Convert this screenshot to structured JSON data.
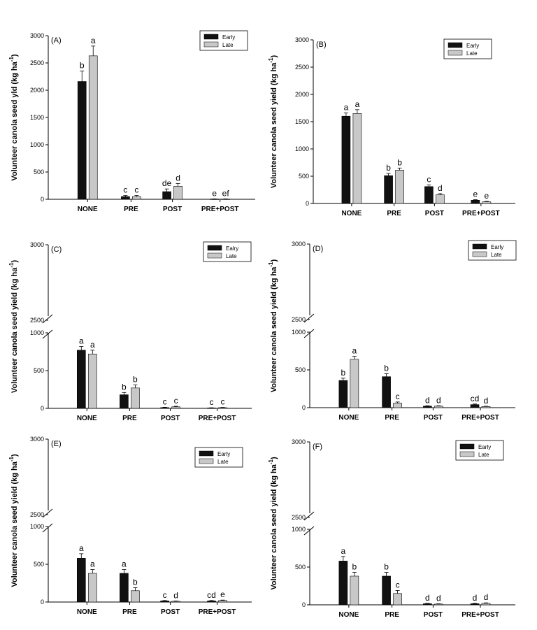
{
  "chart_data": [
    {
      "type": "bar",
      "panel_label": "(A)",
      "ylabel": "Volunteer canola seed yld (kg ha",
      "ylabel_exp": "-1",
      "ylabel_close": ")",
      "categories": [
        "NONE",
        "PRE",
        "POST",
        "PRE+POST"
      ],
      "broken_axis": false,
      "ylim": [
        0,
        3000
      ],
      "yticks": [
        0,
        500,
        1000,
        1500,
        2000,
        2500,
        3000
      ],
      "legend_position": "top-right",
      "series": [
        {
          "name": "Early",
          "color": "#111111",
          "values": [
            2160,
            50,
            140,
            5
          ],
          "errors": [
            190,
            20,
            50,
            3
          ],
          "letters": [
            "b",
            "c",
            "de",
            "e"
          ]
        },
        {
          "name": "Late",
          "color": "#c8c8c8",
          "values": [
            2630,
            50,
            240,
            5
          ],
          "errors": [
            180,
            20,
            50,
            3
          ],
          "letters": [
            "a",
            "c",
            "d",
            "ef"
          ]
        }
      ]
    },
    {
      "type": "bar",
      "panel_label": "(B)",
      "ylabel": "Volunteer canola seed yield (kg ha",
      "ylabel_exp": "-1",
      "ylabel_close": ")",
      "categories": [
        "NONE",
        "PRE",
        "POST",
        "PRE+POST"
      ],
      "broken_axis": false,
      "ylim": [
        0,
        3000
      ],
      "yticks": [
        0,
        500,
        1000,
        1500,
        2000,
        2500,
        3000
      ],
      "legend_position": "top-right",
      "series": [
        {
          "name": "Early",
          "color": "#111111",
          "values": [
            1600,
            510,
            310,
            60
          ],
          "errors": [
            60,
            40,
            30,
            10
          ],
          "letters": [
            "a",
            "b",
            "c",
            "e"
          ]
        },
        {
          "name": "Late",
          "color": "#c8c8c8",
          "values": [
            1650,
            610,
            160,
            30
          ],
          "errors": [
            70,
            40,
            20,
            8
          ],
          "letters": [
            "a",
            "b",
            "d",
            "e"
          ]
        }
      ]
    },
    {
      "type": "bar",
      "panel_label": "(C)",
      "ylabel": "Volunteer canola seed yield (kg ha",
      "ylabel_exp": "-1",
      "ylabel_close": ")",
      "categories": [
        "NONE",
        "PRE",
        "POST",
        "PRE+POST"
      ],
      "broken_axis": true,
      "ylim": [
        0,
        1000
      ],
      "yticks": [
        0,
        500,
        1000
      ],
      "upper_yticks": [
        2500,
        3000
      ],
      "legend_position": "top-right",
      "series": [
        {
          "name": "Ealry",
          "color": "#111111",
          "values": [
            770,
            180,
            10,
            5
          ],
          "errors": [
            50,
            30,
            5,
            3
          ],
          "letters": [
            "a",
            "b",
            "c",
            "c"
          ]
        },
        {
          "name": "Late",
          "color": "#c8c8c8",
          "values": [
            720,
            270,
            20,
            10
          ],
          "errors": [
            50,
            40,
            8,
            4
          ],
          "letters": [
            "a",
            "b",
            "c",
            "c"
          ]
        }
      ]
    },
    {
      "type": "bar",
      "panel_label": "(D)",
      "ylabel": "Volunteer canola seed yield (kg ha",
      "ylabel_exp": "-1",
      "ylabel_close": ")",
      "categories": [
        "NONE",
        "PRE",
        "POST",
        "PRE+POST"
      ],
      "broken_axis": true,
      "ylim": [
        0,
        1000
      ],
      "yticks": [
        0,
        500,
        1000
      ],
      "upper_yticks": [
        2500,
        3000
      ],
      "legend_position": "top-right",
      "series": [
        {
          "name": "Early",
          "color": "#111111",
          "values": [
            360,
            410,
            20,
            40
          ],
          "errors": [
            30,
            40,
            5,
            8
          ],
          "letters": [
            "b",
            "b",
            "d",
            "cd"
          ]
        },
        {
          "name": "Late",
          "color": "#c8c8c8",
          "values": [
            640,
            60,
            20,
            15
          ],
          "errors": [
            40,
            15,
            5,
            4
          ],
          "letters": [
            "a",
            "c",
            "d",
            "d"
          ]
        }
      ]
    },
    {
      "type": "bar",
      "panel_label": "(E)",
      "ylabel": "Volunteer canola seed yield (kg ha",
      "ylabel_exp": "-1",
      "ylabel_close": ")",
      "categories": [
        "NONE",
        "PRE",
        "POST",
        "PRE+POST"
      ],
      "broken_axis": true,
      "ylim": [
        0,
        1000
      ],
      "yticks": [
        0,
        500,
        1000
      ],
      "upper_yticks": [
        2500,
        3000
      ],
      "legend_position": "top-right",
      "series": [
        {
          "name": "Early",
          "color": "#111111",
          "values": [
            580,
            380,
            15,
            15
          ],
          "errors": [
            60,
            50,
            5,
            5
          ],
          "letters": [
            "a",
            "a",
            "c",
            "cd"
          ]
        },
        {
          "name": "Late",
          "color": "#c8c8c8",
          "values": [
            380,
            150,
            10,
            20
          ],
          "errors": [
            50,
            40,
            4,
            6
          ],
          "letters": [
            "a",
            "b",
            "d",
            "e"
          ]
        }
      ]
    },
    {
      "type": "bar",
      "panel_label": "(F)",
      "ylabel": "Volunteer canola seed yield (kg ha",
      "ylabel_exp": "-1",
      "ylabel_close": ")",
      "categories": [
        "NONE",
        "PRE",
        "POST",
        "PRE+POST"
      ],
      "broken_axis": true,
      "ylim": [
        0,
        1000
      ],
      "yticks": [
        0,
        500,
        1000
      ],
      "upper_yticks": [
        2500,
        3000
      ],
      "legend_position": "top-right",
      "series": [
        {
          "name": "Early",
          "color": "#111111",
          "values": [
            580,
            380,
            15,
            15
          ],
          "errors": [
            60,
            50,
            5,
            5
          ],
          "letters": [
            "a",
            "b",
            "d",
            "d"
          ]
        },
        {
          "name": "Late",
          "color": "#c8c8c8",
          "values": [
            380,
            150,
            10,
            20
          ],
          "errors": [
            50,
            40,
            4,
            6
          ],
          "letters": [
            "b",
            "c",
            "d",
            "d"
          ]
        }
      ]
    }
  ]
}
